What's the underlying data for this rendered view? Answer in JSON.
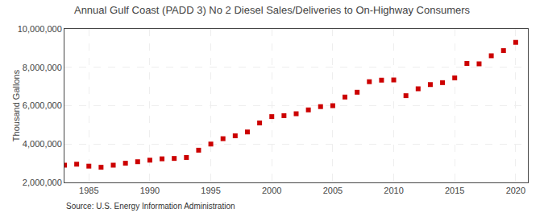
{
  "chart_data": {
    "type": "scatter",
    "title": "Annual Gulf Coast (PADD 3) No 2 Diesel Sales/Deliveries to On-Highway Consumers",
    "y_label": "Thousand Gallons",
    "annotations": [
      "Source: U.S. Energy Information Administration"
    ],
    "x": [
      1983,
      1984,
      1985,
      1986,
      1987,
      1988,
      1989,
      1990,
      1991,
      1992,
      1993,
      1994,
      1995,
      1996,
      1997,
      1998,
      1999,
      2000,
      2001,
      2002,
      2003,
      2004,
      2005,
      2006,
      2007,
      2008,
      2009,
      2010,
      2011,
      2012,
      2013,
      2014,
      2015,
      2016,
      2017,
      2018,
      2019,
      2020
    ],
    "values": [
      2900000,
      2950000,
      2850000,
      2790000,
      2900000,
      3000000,
      3080000,
      3160000,
      3230000,
      3250000,
      3300000,
      3680000,
      4000000,
      4280000,
      4430000,
      4630000,
      5100000,
      5430000,
      5480000,
      5580000,
      5780000,
      5950000,
      6000000,
      6450000,
      6700000,
      7250000,
      7330000,
      7340000,
      6520000,
      6880000,
      7100000,
      7200000,
      7450000,
      8200000,
      8180000,
      8600000,
      8870000,
      9300000
    ],
    "color": "#cc0000",
    "marker": "square",
    "xlim": [
      1983,
      2021
    ],
    "ylim": [
      2000000,
      10000000
    ],
    "xticks": [
      1985,
      1990,
      1995,
      2000,
      2005,
      2010,
      2015,
      2020
    ],
    "yticks": [
      {
        "value": 2000000,
        "label": "2,000,000"
      },
      {
        "value": 4000000,
        "label": "4,000,000"
      },
      {
        "value": 6000000,
        "label": "6,000,000"
      },
      {
        "value": 8000000,
        "label": "8,000,000"
      },
      {
        "value": 10000000,
        "label": "10,000,000"
      }
    ],
    "grid": true
  }
}
